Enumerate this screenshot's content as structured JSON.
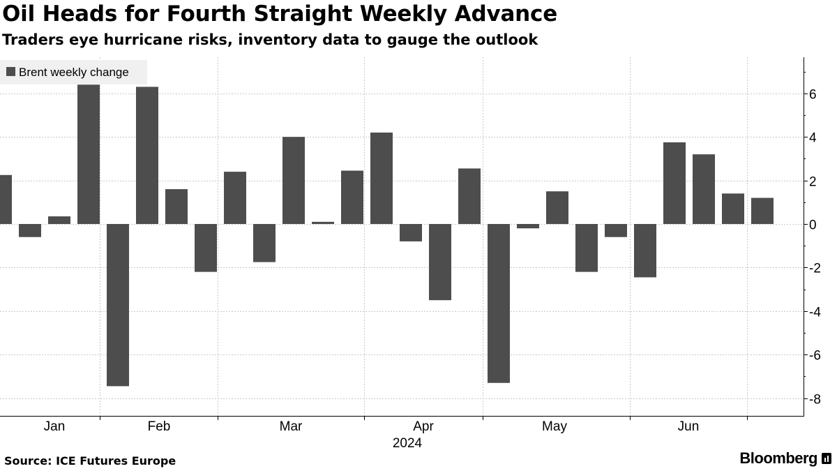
{
  "header": {
    "title": "Oil Heads for Fourth Straight Weekly Advance",
    "subtitle": "Traders eye hurricane risks, inventory data to gauge the outlook"
  },
  "footer": {
    "source": "Source: ICE Futures Europe",
    "brand": "Bloomberg"
  },
  "chart_data": {
    "type": "bar",
    "title": "Oil Heads for Fourth Straight Weekly Advance",
    "subtitle": "Traders eye hurricane risks, inventory data to gauge the outlook",
    "legend": {
      "label": "Brent weekly change",
      "placement": "top-left"
    },
    "xlabel": "2024",
    "ylabel": "",
    "ylim": [
      -8.6,
      7.6
    ],
    "yticks": [
      6,
      4,
      2,
      0,
      -2,
      -4,
      -6,
      -8
    ],
    "months": [
      "Jan",
      "Feb",
      "Mar",
      "Apr",
      "May",
      "Jun"
    ],
    "series": [
      {
        "name": "Brent weekly change",
        "color": "#4d4d4d",
        "values": [
          2.25,
          -0.6,
          0.35,
          6.4,
          -7.45,
          6.3,
          1.6,
          -2.2,
          2.4,
          -1.75,
          4.0,
          0.1,
          2.45,
          4.2,
          -0.8,
          -3.5,
          2.55,
          -7.3,
          -0.2,
          1.5,
          -2.2,
          -0.6,
          -2.45,
          3.75,
          3.2,
          1.4,
          1.2
        ]
      }
    ]
  }
}
